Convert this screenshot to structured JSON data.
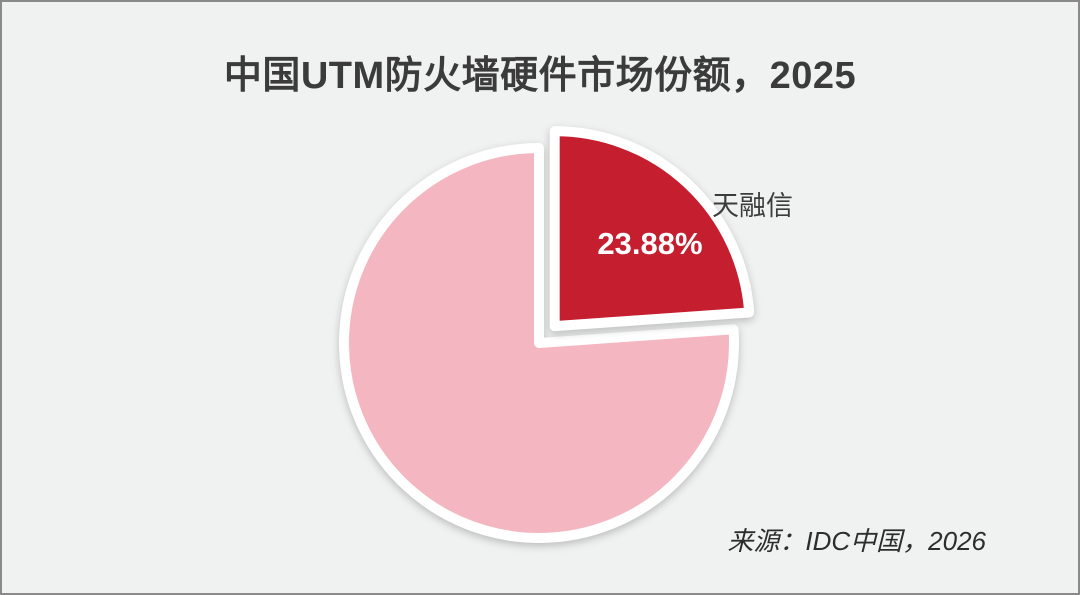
{
  "frame": {
    "background": "#F0F1F1",
    "border_color": "#8A8A8A"
  },
  "chart_data": {
    "type": "pie",
    "title": "中国UTM防火墙硬件市场份额，2025",
    "start_angle_deg": 0,
    "legend": "none",
    "slices": [
      {
        "label": "天融信",
        "value": 23.88,
        "data_label": "23.88%",
        "color": "#C41E2F",
        "exploded": true,
        "data_label_color": "#FFFFFF"
      },
      {
        "label": "",
        "value": 76.12,
        "data_label": "",
        "color": "#F4B6C0",
        "exploded": false,
        "data_label_color": ""
      }
    ]
  },
  "source": {
    "text": "来源：IDC中国，2026",
    "color": "#2D2D2D"
  }
}
